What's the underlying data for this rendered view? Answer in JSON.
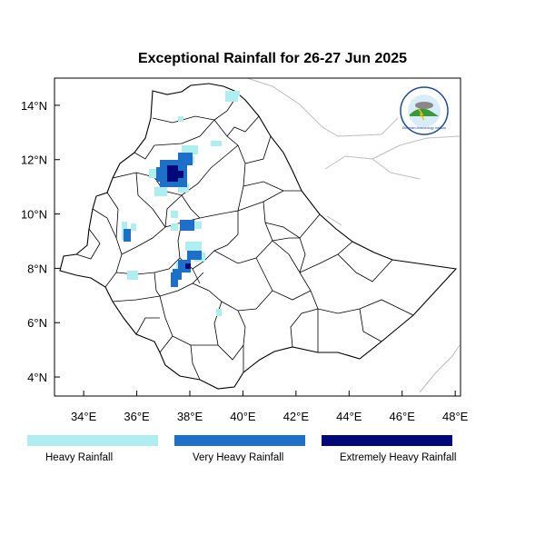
{
  "title": "Exceptional Rainfall for 26-27 Jun 2025",
  "axes": {
    "x_ticks": [
      "34°E",
      "36°E",
      "38°E",
      "40°E",
      "42°E",
      "44°E",
      "46°E",
      "48°E"
    ],
    "y_ticks": [
      "14°N",
      "12°N",
      "10°N",
      "8°N",
      "6°N",
      "4°N"
    ],
    "x_range": [
      32.9,
      48.2
    ],
    "y_range": [
      3.3,
      15.0
    ]
  },
  "legend": [
    {
      "label": "Heavy Rainfall",
      "color": "#aeeef0"
    },
    {
      "label": "Very Heavy Rainfall",
      "color": "#1e6fc8"
    },
    {
      "label": "Extremely Heavy Rainfall",
      "color": "#00087a"
    }
  ],
  "logo": {
    "name": "ethiopian-meteorology-institute-logo",
    "text": "Ethiopian Meteorology Institute"
  }
}
